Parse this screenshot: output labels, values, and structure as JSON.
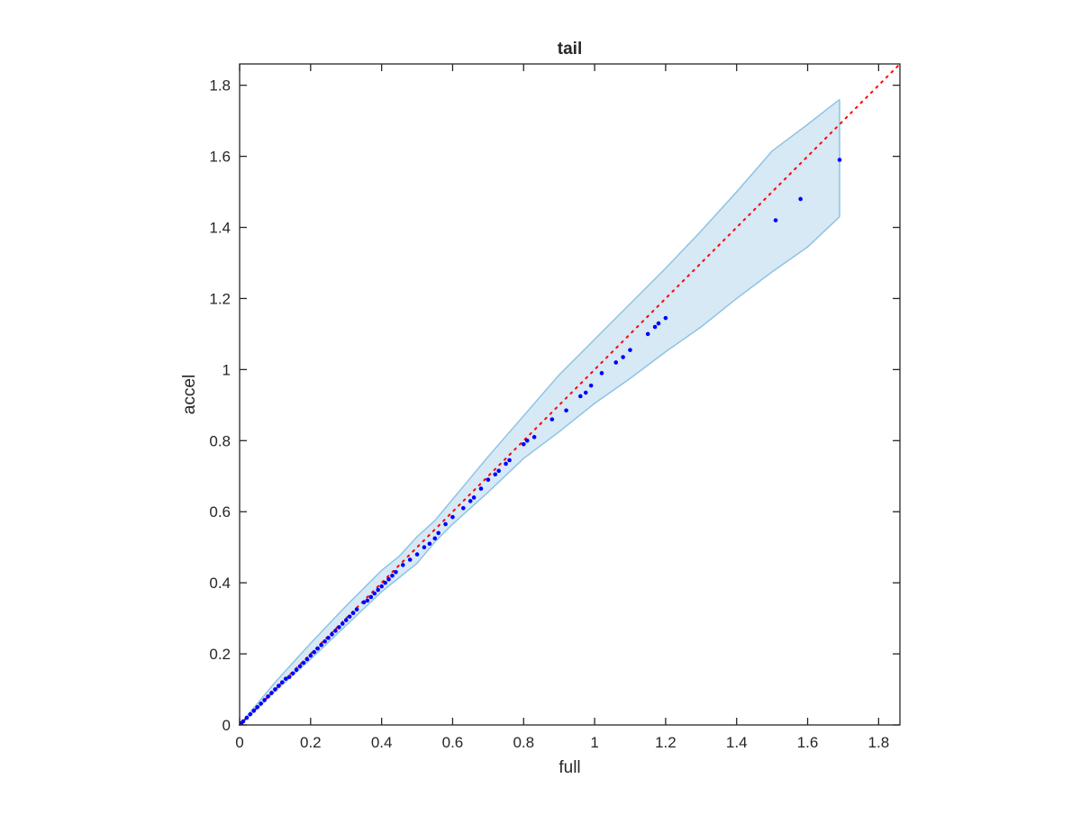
{
  "chart_data": {
    "type": "scatter",
    "title": "tail",
    "xlabel": "full",
    "ylabel": "accel",
    "xlim": [
      0,
      1.86
    ],
    "ylim": [
      0,
      1.86
    ],
    "xticks": [
      "0",
      "0.2",
      "0.4",
      "0.6",
      "0.8",
      "1",
      "1.2",
      "1.4",
      "1.6",
      "1.8"
    ],
    "yticks": [
      "0",
      "0.2",
      "0.4",
      "0.6",
      "0.8",
      "1",
      "1.2",
      "1.4",
      "1.6",
      "1.8"
    ],
    "grid": false,
    "legend": "none",
    "reference_line": {
      "type": "identity",
      "style": "dotted",
      "color": "#ff0000",
      "x": [
        0,
        1.86
      ],
      "y": [
        0,
        1.86
      ]
    },
    "band": {
      "color": "#d6e9f5",
      "edge_color": "#8fc3e3",
      "x": [
        0,
        0.05,
        0.1,
        0.15,
        0.2,
        0.3,
        0.4,
        0.45,
        0.5,
        0.55,
        0.6,
        0.7,
        0.8,
        0.9,
        1.0,
        1.1,
        1.2,
        1.3,
        1.4,
        1.5,
        1.6,
        1.69
      ],
      "upper": [
        0,
        0.06,
        0.12,
        0.175,
        0.23,
        0.335,
        0.435,
        0.475,
        0.53,
        0.575,
        0.635,
        0.755,
        0.87,
        0.985,
        1.085,
        1.185,
        1.285,
        1.39,
        1.5,
        1.615,
        1.69,
        1.76
      ],
      "lower": [
        0,
        0.045,
        0.095,
        0.14,
        0.185,
        0.28,
        0.375,
        0.415,
        0.455,
        0.515,
        0.565,
        0.655,
        0.75,
        0.825,
        0.905,
        0.975,
        1.05,
        1.12,
        1.2,
        1.275,
        1.345,
        1.43
      ]
    },
    "series": [
      {
        "color": "#0000ff",
        "points": [
          [
            0.005,
            0.005
          ],
          [
            0.01,
            0.01
          ],
          [
            0.02,
            0.02
          ],
          [
            0.03,
            0.03
          ],
          [
            0.04,
            0.04
          ],
          [
            0.05,
            0.05
          ],
          [
            0.06,
            0.06
          ],
          [
            0.07,
            0.07
          ],
          [
            0.08,
            0.08
          ],
          [
            0.09,
            0.09
          ],
          [
            0.1,
            0.1
          ],
          [
            0.11,
            0.11
          ],
          [
            0.12,
            0.12
          ],
          [
            0.13,
            0.13
          ],
          [
            0.14,
            0.135
          ],
          [
            0.15,
            0.145
          ],
          [
            0.16,
            0.155
          ],
          [
            0.17,
            0.165
          ],
          [
            0.18,
            0.175
          ],
          [
            0.19,
            0.185
          ],
          [
            0.2,
            0.195
          ],
          [
            0.21,
            0.205
          ],
          [
            0.22,
            0.215
          ],
          [
            0.23,
            0.225
          ],
          [
            0.24,
            0.235
          ],
          [
            0.25,
            0.245
          ],
          [
            0.26,
            0.255
          ],
          [
            0.27,
            0.265
          ],
          [
            0.28,
            0.275
          ],
          [
            0.29,
            0.285
          ],
          [
            0.3,
            0.295
          ],
          [
            0.31,
            0.305
          ],
          [
            0.32,
            0.315
          ],
          [
            0.33,
            0.325
          ],
          [
            0.35,
            0.345
          ],
          [
            0.36,
            0.35
          ],
          [
            0.37,
            0.36
          ],
          [
            0.38,
            0.37
          ],
          [
            0.39,
            0.38
          ],
          [
            0.4,
            0.39
          ],
          [
            0.41,
            0.4
          ],
          [
            0.42,
            0.41
          ],
          [
            0.43,
            0.42
          ],
          [
            0.44,
            0.43
          ],
          [
            0.46,
            0.45
          ],
          [
            0.48,
            0.465
          ],
          [
            0.5,
            0.48
          ],
          [
            0.52,
            0.5
          ],
          [
            0.535,
            0.51
          ],
          [
            0.55,
            0.525
          ],
          [
            0.56,
            0.54
          ],
          [
            0.58,
            0.565
          ],
          [
            0.6,
            0.585
          ],
          [
            0.63,
            0.61
          ],
          [
            0.65,
            0.63
          ],
          [
            0.66,
            0.64
          ],
          [
            0.68,
            0.665
          ],
          [
            0.7,
            0.69
          ],
          [
            0.72,
            0.705
          ],
          [
            0.73,
            0.715
          ],
          [
            0.75,
            0.735
          ],
          [
            0.76,
            0.745
          ],
          [
            0.8,
            0.79
          ],
          [
            0.81,
            0.8
          ],
          [
            0.83,
            0.81
          ],
          [
            0.88,
            0.86
          ],
          [
            0.92,
            0.885
          ],
          [
            0.96,
            0.925
          ],
          [
            0.975,
            0.935
          ],
          [
            0.99,
            0.955
          ],
          [
            1.02,
            0.99
          ],
          [
            1.06,
            1.02
          ],
          [
            1.08,
            1.035
          ],
          [
            1.1,
            1.055
          ],
          [
            1.15,
            1.1
          ],
          [
            1.17,
            1.12
          ],
          [
            1.18,
            1.13
          ],
          [
            1.2,
            1.145
          ],
          [
            1.51,
            1.42
          ],
          [
            1.58,
            1.48
          ],
          [
            1.69,
            1.59
          ]
        ]
      }
    ]
  }
}
